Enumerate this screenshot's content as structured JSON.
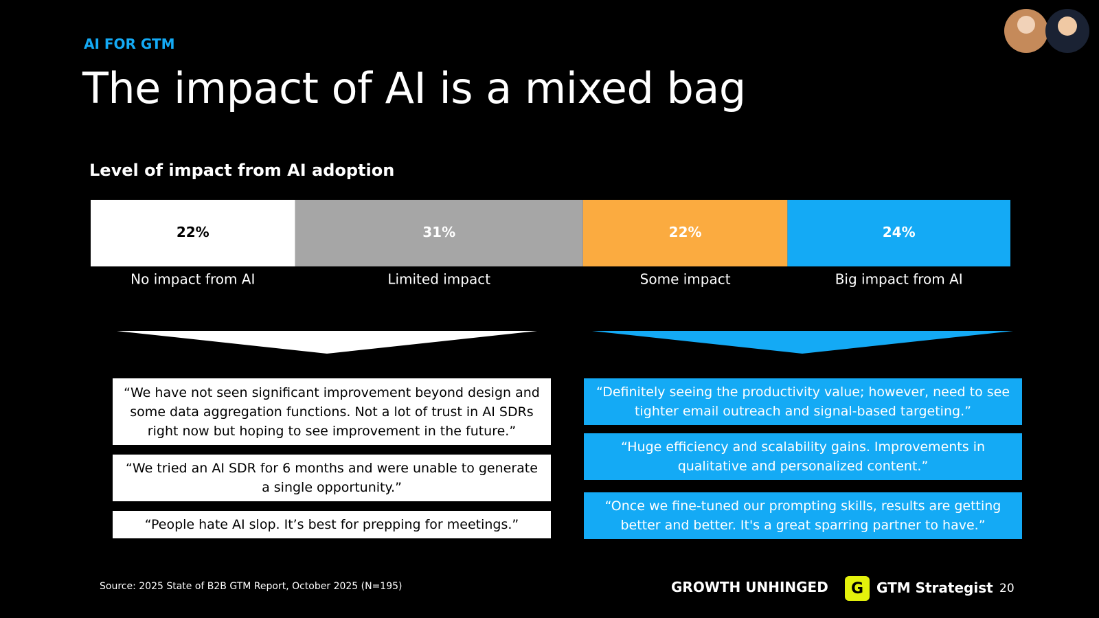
{
  "header": {
    "eyebrow": "AI FOR GTM",
    "title": "The impact of AI is a mixed bag"
  },
  "chart_data": {
    "type": "bar",
    "stacked": true,
    "orientation": "horizontal",
    "title": "Level of impact from AI adoption",
    "series": [
      {
        "name": "No impact from AI",
        "color": "#ffffff",
        "values": [
          22
        ],
        "value_labels": [
          "22%"
        ]
      },
      {
        "name": "Limited impact",
        "color": "#a6a6a6",
        "values": [
          31
        ],
        "value_labels": [
          "31%"
        ]
      },
      {
        "name": "Some impact",
        "color": "#fbab40",
        "values": [
          22
        ],
        "value_labels": [
          "22%"
        ]
      },
      {
        "name": "Big impact from AI",
        "color": "#14aaf5",
        "values": [
          24
        ],
        "value_labels": [
          "24%"
        ]
      }
    ]
  },
  "quotes": {
    "negative": [
      "“We have not seen significant improvement beyond design and some data aggregation functions. Not a lot of trust in AI SDRs right now but hoping to see improvement in the future.”",
      "“We tried an AI SDR for 6 months and were unable to generate a single opportunity.”",
      "“People hate AI slop. It’s best for prepping for meetings.”"
    ],
    "positive": [
      "“Definitely seeing the productivity value; however, need to see tighter email outreach and signal-based targeting.”",
      "“Huge efficiency and scalability gains. Improvements in qualitative and personalized content.”",
      "“Once we fine-tuned our prompting skills, results are getting better and better. It's a great sparring partner to have.”"
    ]
  },
  "footer": {
    "source": "Source: 2025 State of B2B GTM Report, October 2025 (N=195)",
    "brand": "GROWTH UNHINGED",
    "logo_letter": "G",
    "logo_name": "GTM Strategist",
    "page": "20"
  }
}
